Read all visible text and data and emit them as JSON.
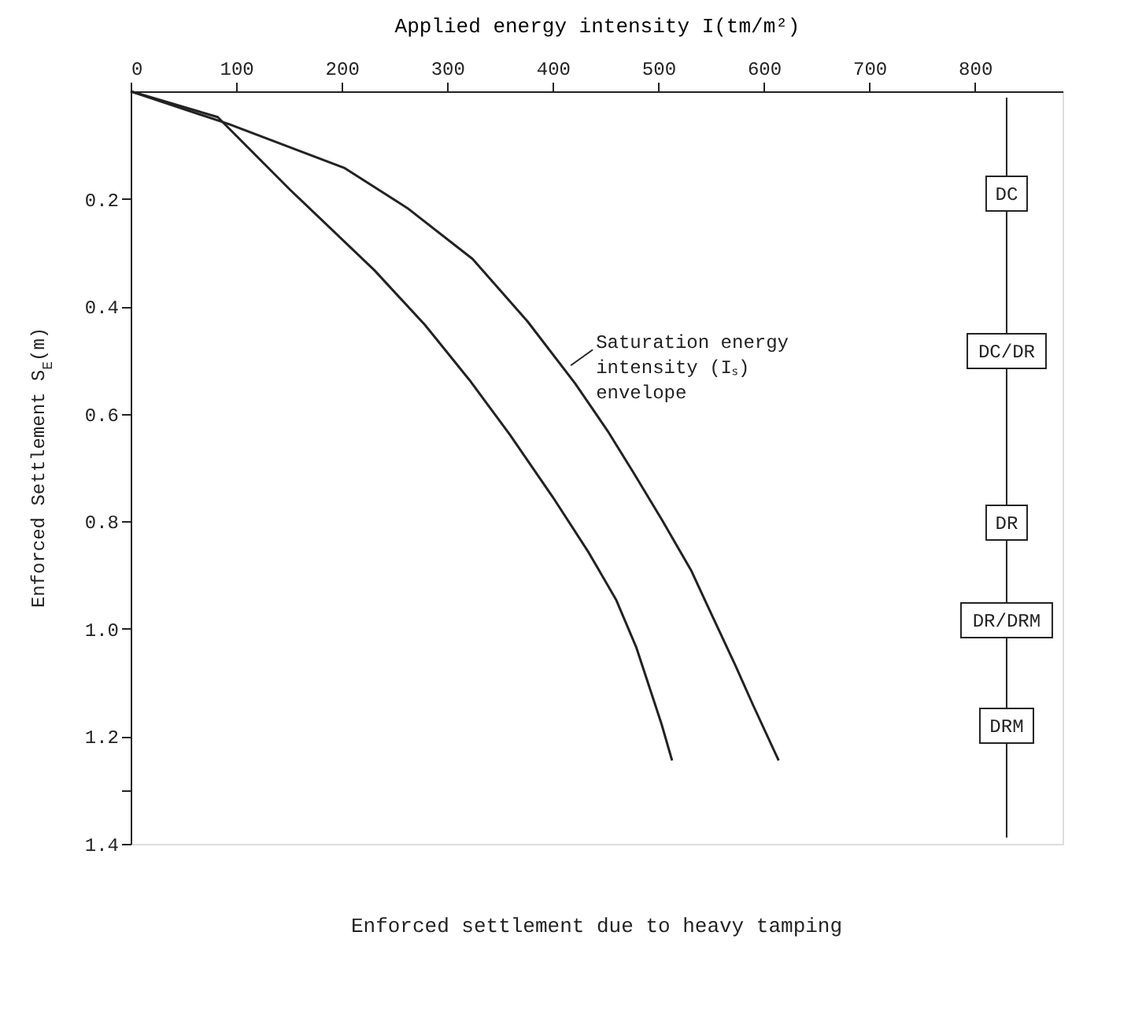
{
  "chart_data": {
    "type": "line",
    "title": "Enforced settlement due to heavy tamping",
    "xlabel": "Applied energy intensity I(tm/m²)",
    "ylabel": "Enforced Settlement S$_{E}$(m)",
    "series": [
      {
        "color": "#222222",
        "x": [
          0,
          82.5,
          151,
          231,
          279,
          321,
          359,
          400,
          434,
          460,
          479,
          503,
          513
        ],
        "values": [
          0,
          0.048,
          0.183,
          0.333,
          0.435,
          0.537,
          0.638,
          0.755,
          0.858,
          0.946,
          1.034,
          1.177,
          1.245
        ]
      },
      {
        "color": "#222222",
        "x": [
          0,
          93,
          203,
          262,
          324,
          376,
          421,
          452,
          476,
          503,
          531,
          552,
          573,
          590,
          614
        ],
        "values": [
          0,
          0.061,
          0.143,
          0.217,
          0.312,
          0.428,
          0.543,
          0.632,
          0.708,
          0.796,
          0.891,
          0.98,
          1.068,
          1.143,
          1.245
        ]
      }
    ],
    "xlim": [
      0,
      883
    ],
    "xticks": [
      0,
      100,
      200,
      300,
      400,
      500,
      600,
      700,
      800
    ],
    "ylim": [
      1.4,
      0
    ],
    "yticks": [
      0.2,
      0.4,
      0.6,
      0.8,
      {
        "value": 1.0,
        "label": "1.0"
      },
      1.2,
      {
        "value": 1.3,
        "label": null
      },
      1.4
    ],
    "annotations": [
      {
        "text": "Saturation energy\nintensity (Iₛ)\nenvelope",
        "x": 417,
        "y": 0.51
      },
      "DC",
      "DC/DR",
      "DR",
      "DR/DRM",
      "DRM"
    ],
    "ref_lines": [
      {
        "axis": "x",
        "value": 830
      }
    ],
    "grid": false,
    "marker": "none",
    "line_style": "solid"
  }
}
